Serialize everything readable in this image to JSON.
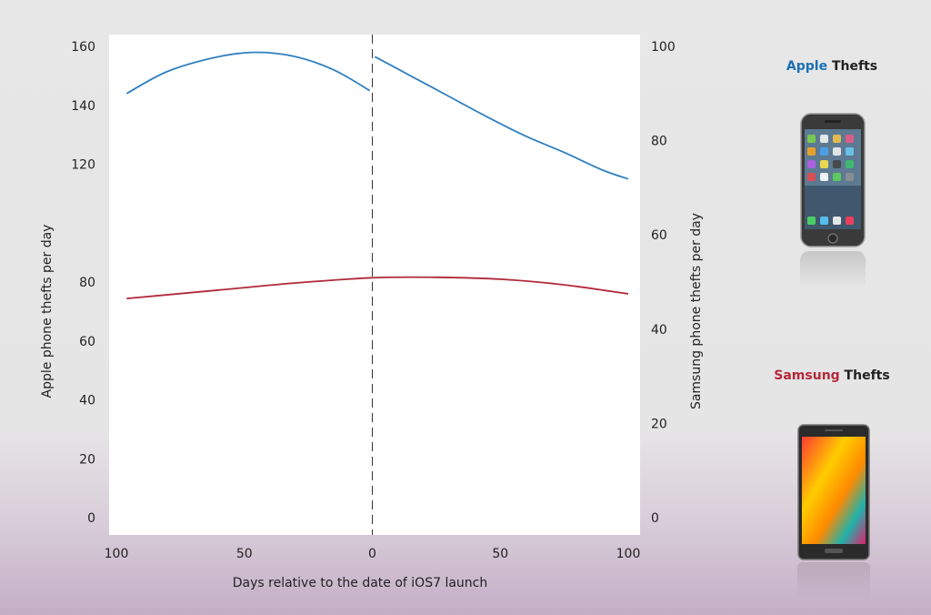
{
  "chart_data": {
    "type": "line",
    "xlabel": "Days relative to the date of iOS7 launch",
    "ylabel_left": "Apple phone thefts per day",
    "ylabel_right": "Samsung phone thefts per day",
    "x_ticks": [
      "100",
      "50",
      "0",
      "50",
      "100"
    ],
    "x_range": [
      -100,
      100
    ],
    "ylim_left": [
      0,
      160
    ],
    "ylim_right": [
      0,
      100
    ],
    "y_ticks_left": [
      0,
      20,
      40,
      60,
      80,
      120,
      140,
      160
    ],
    "y_ticks_right": [
      0,
      20,
      40,
      60,
      80,
      100
    ],
    "vertical_marker_x": 0,
    "series": [
      {
        "name": "Apple",
        "axis": "left",
        "color": "#2f7fbf",
        "segments": [
          {
            "x": [
              -96,
              -80,
              -60,
              -45,
              -30,
              -15,
              -1
            ],
            "y": [
              144,
              151.5,
              156.5,
              158,
              156.5,
              152,
              145
            ]
          },
          {
            "x": [
              1,
              15,
              30,
              45,
              60,
              75,
              90,
              100
            ],
            "y": [
              156.5,
              150,
              143,
              136,
              129.5,
              124,
              118,
              115
            ]
          }
        ]
      },
      {
        "name": "Samsung",
        "axis": "right",
        "color": "#b0283a",
        "segments": [
          {
            "x": [
              -96,
              -60,
              -30,
              0,
              25,
              50,
              75,
              100
            ],
            "y": [
              46.5,
              48.3,
              49.8,
              50.9,
              51,
              50.6,
              49.4,
              47.5
            ]
          }
        ]
      }
    ]
  },
  "legend": {
    "apple": {
      "brand": "Apple",
      "suffix": " Thefts",
      "brand_color": "#1a6fb5"
    },
    "samsung": {
      "brand": "Samsung",
      "suffix": " Thefts",
      "brand_color": "#b3283a"
    }
  }
}
